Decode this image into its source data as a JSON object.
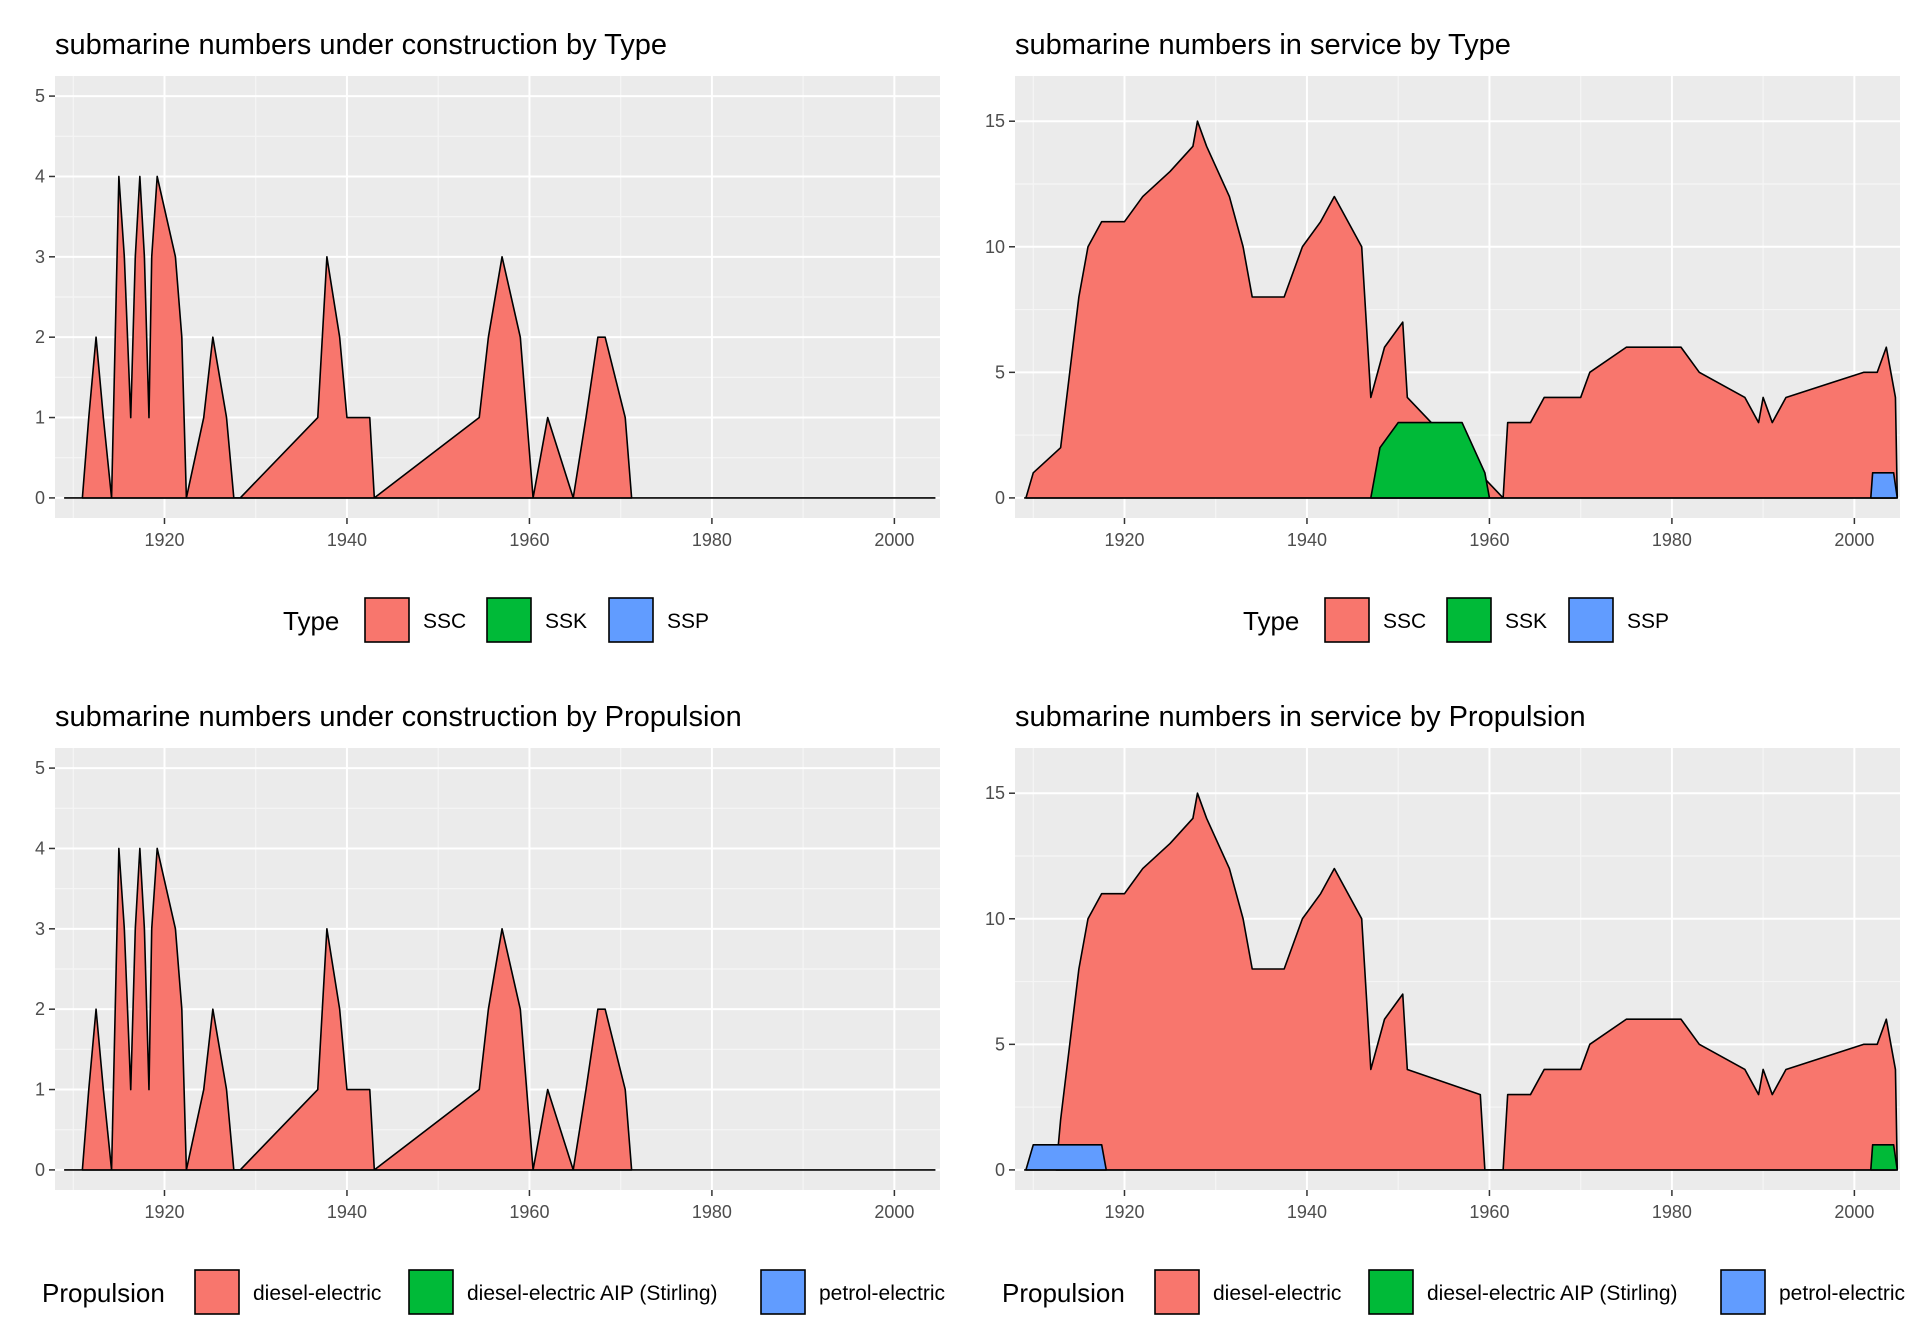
{
  "colors": {
    "panel_bg": "#ebebeb",
    "grid_major": "#ffffff",
    "grid_minor": "#f5f5f5",
    "outline": "#000000",
    "red": "#f8766d",
    "green": "#00ba38",
    "blue": "#619cff"
  },
  "chart_data": [
    {
      "type": "area",
      "title": "submarine numbers under construction by Type",
      "xlabel": "",
      "ylabel": "",
      "xlim": [
        1908,
        2005
      ],
      "ylim": [
        0,
        5
      ],
      "x_ticks": [
        1920,
        1940,
        1960,
        1980,
        2000
      ],
      "y_ticks": [
        0,
        1,
        2,
        3,
        4,
        5
      ],
      "legend": {
        "title": "Type",
        "position": "bottom",
        "items": [
          "SSC",
          "SSK",
          "SSP"
        ]
      },
      "grid": true,
      "series": [
        {
          "name": "SSC",
          "color": "red",
          "x": [
            1911,
            1911.7,
            1912.5,
            1913.3,
            1914.2,
            1915,
            1915.6,
            1916.3,
            1916.8,
            1917.3,
            1917.8,
            1918.3,
            1918.6,
            1919.2,
            1921.2,
            1921.9,
            1922.4,
            1924.3,
            1925.3,
            1926.8,
            1927.6,
            1928.3,
            1936.8,
            1937.8,
            1939.2,
            1940,
            1942.5,
            1943,
            1954.5,
            1955.5,
            1957,
            1959,
            1960.4,
            1962,
            1964.8,
            1966.2,
            1967.5,
            1968.3,
            1970.5,
            1971.2
          ],
          "y": [
            0,
            1,
            2,
            1,
            0,
            4,
            3,
            1,
            3,
            4,
            3,
            1,
            3,
            4,
            3,
            2,
            0,
            1,
            2,
            1,
            0,
            0,
            1,
            3,
            2,
            1,
            1,
            0,
            1,
            2,
            3,
            2,
            0,
            1,
            0,
            1,
            2,
            2,
            1,
            0
          ]
        }
      ]
    },
    {
      "type": "area",
      "title": "submarine numbers in service by Type",
      "xlabel": "",
      "ylabel": "",
      "xlim": [
        1908,
        2005
      ],
      "ylim": [
        0,
        16
      ],
      "x_ticks": [
        1920,
        1940,
        1960,
        1980,
        2000
      ],
      "y_ticks": [
        0,
        5,
        10,
        15
      ],
      "legend": {
        "title": "Type",
        "position": "bottom",
        "items": [
          "SSC",
          "SSK",
          "SSP"
        ]
      },
      "grid": true,
      "series": [
        {
          "name": "SSC",
          "color": "red",
          "x": [
            1909.2,
            1910,
            1913,
            1914,
            1915,
            1916,
            1917.5,
            1920,
            1922,
            1925,
            1927.5,
            1928,
            1929,
            1931.5,
            1933,
            1934,
            1937.5,
            1939.5,
            1941.5,
            1943,
            1946,
            1946.5,
            1947,
            1948.5,
            1950.5,
            1951,
            1961.5,
            1962,
            1964.5,
            1966,
            1970,
            1971,
            1975,
            1981,
            1983,
            1988,
            1989.5,
            1990,
            1991,
            1992.5,
            2001,
            2002.5,
            2003.5,
            2004.5,
            2004.7
          ],
          "y": [
            0,
            1,
            2,
            5,
            8,
            10,
            11,
            11,
            12,
            13,
            14,
            15,
            14,
            12,
            10,
            8,
            8,
            10,
            11,
            12,
            10,
            7,
            4,
            6,
            7,
            4,
            0,
            3,
            3,
            4,
            4,
            5,
            6,
            6,
            5,
            4,
            3,
            4,
            3,
            4,
            5,
            5,
            6,
            4,
            0
          ]
        },
        {
          "name": "SSK",
          "color": "green",
          "x": [
            1947,
            1948,
            1950,
            1957,
            1959.5,
            1960
          ],
          "y": [
            0,
            2,
            3,
            3,
            1,
            0
          ]
        },
        {
          "name": "SSP",
          "color": "blue",
          "x": [
            2001.8,
            2002,
            2004.3,
            2004.7
          ],
          "y": [
            0,
            1,
            1,
            0
          ]
        }
      ]
    },
    {
      "type": "area",
      "title": "submarine numbers under construction by Propulsion",
      "xlabel": "",
      "ylabel": "",
      "xlim": [
        1908,
        2005
      ],
      "ylim": [
        0,
        5
      ],
      "x_ticks": [
        1920,
        1940,
        1960,
        1980,
        2000
      ],
      "y_ticks": [
        0,
        1,
        2,
        3,
        4,
        5
      ],
      "legend": {
        "title": "Propulsion",
        "position": "bottom",
        "items": [
          "diesel-electric",
          "diesel-electric AIP (Stirling)",
          "petrol-electric"
        ]
      },
      "grid": true,
      "series": [
        {
          "name": "diesel-electric",
          "color": "red",
          "x": [
            1911,
            1911.7,
            1912.5,
            1913.3,
            1914.2,
            1915,
            1915.6,
            1916.3,
            1916.8,
            1917.3,
            1917.8,
            1918.3,
            1918.6,
            1919.2,
            1921.2,
            1921.9,
            1922.4,
            1924.3,
            1925.3,
            1926.8,
            1927.6,
            1928.3,
            1936.8,
            1937.8,
            1939.2,
            1940,
            1942.5,
            1943,
            1954.5,
            1955.5,
            1957,
            1959,
            1960.4,
            1962,
            1964.8,
            1966.2,
            1967.5,
            1968.3,
            1970.5,
            1971.2
          ],
          "y": [
            0,
            1,
            2,
            1,
            0,
            4,
            3,
            1,
            3,
            4,
            3,
            1,
            3,
            4,
            3,
            2,
            0,
            1,
            2,
            1,
            0,
            0,
            1,
            3,
            2,
            1,
            1,
            0,
            1,
            2,
            3,
            2,
            0,
            1,
            0,
            1,
            2,
            2,
            1,
            0
          ]
        }
      ]
    },
    {
      "type": "area",
      "title": "submarine numbers in service by Propulsion",
      "xlabel": "",
      "ylabel": "",
      "xlim": [
        1908,
        2005
      ],
      "ylim": [
        0,
        16
      ],
      "x_ticks": [
        1920,
        1940,
        1960,
        1980,
        2000
      ],
      "y_ticks": [
        0,
        5,
        10,
        15
      ],
      "legend": {
        "title": "Propulsion",
        "position": "bottom",
        "items": [
          "diesel-electric",
          "diesel-electric AIP (Stirling)",
          "petrol-electric"
        ]
      },
      "grid": true,
      "series": [
        {
          "name": "diesel-electric",
          "color": "red",
          "x": [
            1912.5,
            1913,
            1914,
            1915,
            1916,
            1917.5,
            1920,
            1922,
            1925,
            1927.5,
            1928,
            1929,
            1931.5,
            1933,
            1934,
            1937.5,
            1939.5,
            1941.5,
            1943,
            1946,
            1946.5,
            1947,
            1948.5,
            1950.5,
            1951,
            1959,
            1959.5,
            1961.5,
            1962,
            1964.5,
            1966,
            1970,
            1971,
            1975,
            1981,
            1983,
            1988,
            1989.5,
            1990,
            1991,
            1992.5,
            2001,
            2002.5,
            2003.5,
            2004.5,
            2004.7
          ],
          "y": [
            0,
            2,
            5,
            8,
            10,
            11,
            11,
            12,
            13,
            14,
            15,
            14,
            12,
            10,
            8,
            8,
            10,
            11,
            12,
            10,
            7,
            4,
            6,
            7,
            4,
            3,
            0,
            0,
            3,
            3,
            4,
            4,
            5,
            6,
            6,
            5,
            4,
            3,
            4,
            3,
            4,
            5,
            5,
            6,
            4,
            0
          ]
        },
        {
          "name": "diesel-electric AIP (Stirling)",
          "color": "green",
          "x": [
            2001.8,
            2002,
            2004.3,
            2004.7
          ],
          "y": [
            0,
            1,
            1,
            0
          ]
        },
        {
          "name": "petrol-electric",
          "color": "blue",
          "x": [
            1909.2,
            1910,
            1917.5,
            1918
          ],
          "y": [
            0,
            1,
            1,
            0
          ]
        }
      ]
    }
  ]
}
